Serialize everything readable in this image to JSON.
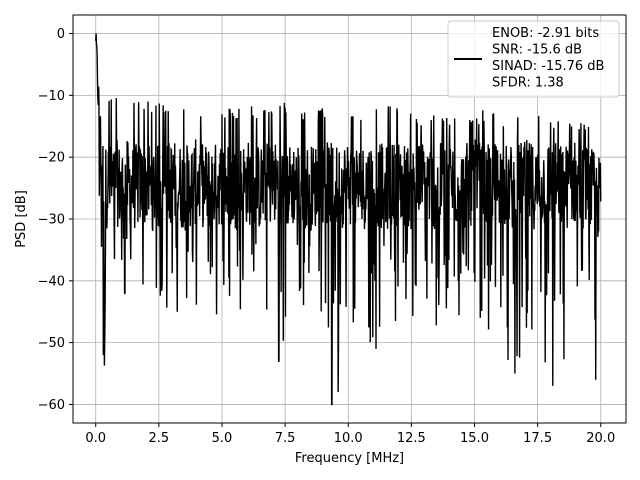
{
  "chart_data": {
    "type": "line",
    "title": "",
    "xlabel": "Frequency [MHz]",
    "ylabel": "PSD [dB]",
    "xlim": [
      -0.9,
      21.0
    ],
    "ylim": [
      -63,
      3
    ],
    "xticks": [
      0.0,
      2.5,
      5.0,
      7.5,
      10.0,
      12.5,
      15.0,
      17.5,
      20.0
    ],
    "xtick_labels": [
      "0.0",
      "2.5",
      "5.0",
      "7.5",
      "10.0",
      "12.5",
      "15.0",
      "17.5",
      "20.0"
    ],
    "yticks": [
      0,
      -10,
      -20,
      -30,
      -40,
      -50,
      -60
    ],
    "ytick_labels": [
      "0",
      "−10",
      "−20",
      "−30",
      "−40",
      "−50",
      "−60"
    ],
    "grid": true,
    "legend_placement": "top-right",
    "series": [
      {
        "name": "",
        "color": "#000000",
        "x": [
          0.0,
          0.05,
          0.1,
          0.15,
          0.2,
          0.25,
          0.3,
          0.35,
          0.4,
          0.5,
          0.6,
          0.8,
          1.0,
          1.2,
          1.5,
          2.0,
          2.5,
          3.0,
          3.5,
          4.0,
          4.5,
          5.0,
          5.5,
          6.0,
          6.5,
          7.0,
          7.5,
          8.0,
          8.5,
          9.0,
          9.5,
          10.0,
          10.5,
          11.0,
          11.5,
          12.0,
          12.5,
          13.0,
          13.5,
          14.0,
          14.5,
          15.0,
          15.5,
          16.0,
          16.5,
          17.0,
          17.5,
          18.0,
          18.5,
          19.0,
          19.5,
          20.0
        ],
        "y": [
          0,
          -5,
          -10,
          -20,
          -18,
          -22,
          -24,
          -52,
          -25,
          -24,
          -25,
          -24,
          -25,
          -24,
          -25,
          -24,
          -25,
          -24,
          -25,
          -24,
          -25,
          -24,
          -25,
          -24,
          -25,
          -24,
          -25,
          -24,
          -25,
          -24,
          -25,
          -24,
          -25,
          -24,
          -25,
          -24,
          -25,
          -24,
          -25,
          -24,
          -25,
          -24,
          -25,
          -24,
          -25,
          -24,
          -25,
          -24,
          -25,
          -24,
          -25,
          -27
        ],
        "upper_envelope": [
          0,
          -5,
          -10,
          -11,
          -11,
          -12,
          -12,
          -12,
          -12,
          -12,
          -12,
          -11,
          -12,
          -13,
          -12,
          -13,
          -13,
          -13,
          -13,
          -14,
          -14,
          -14,
          -14,
          -13,
          -14,
          -14,
          -13,
          -14,
          -14,
          -14,
          -13,
          -14,
          -14,
          -14,
          -13,
          -14,
          -15,
          -15,
          -15,
          -15,
          -15,
          -15,
          -14,
          -15,
          -15,
          -15,
          -15,
          -16,
          -16,
          -16,
          -16,
          -16
        ],
        "lower_envelope": [
          0,
          -20,
          -25,
          -30,
          -35,
          -40,
          -30,
          -52,
          -35,
          -38,
          -35,
          -40,
          -42,
          -44,
          -40,
          -42,
          -43,
          -46,
          -44,
          -46,
          -45,
          -49,
          -44,
          -46,
          -44,
          -46,
          -52,
          -45,
          -46,
          -45,
          -52,
          -60,
          -47,
          -51,
          -48,
          -46,
          -48,
          -47,
          -49,
          -48,
          -47,
          -48,
          -51,
          -52,
          -55,
          -54,
          -56,
          -54,
          -55,
          -55,
          -56,
          -52
        ]
      }
    ],
    "legend": {
      "lines": [
        "ENOB: -2.91 bits",
        "SNR: -15.6 dB",
        "SINAD: -15.76 dB",
        "SFDR: 1.38"
      ],
      "line_color": "#000000"
    },
    "notable_minima": [
      {
        "x": 0.3,
        "y": -52
      },
      {
        "x": 7.25,
        "y": -53
      },
      {
        "x": 9.35,
        "y": -60
      },
      {
        "x": 9.6,
        "y": -58
      },
      {
        "x": 11.1,
        "y": -51
      },
      {
        "x": 16.6,
        "y": -55
      },
      {
        "x": 18.1,
        "y": -57
      },
      {
        "x": 19.8,
        "y": -56
      }
    ]
  }
}
